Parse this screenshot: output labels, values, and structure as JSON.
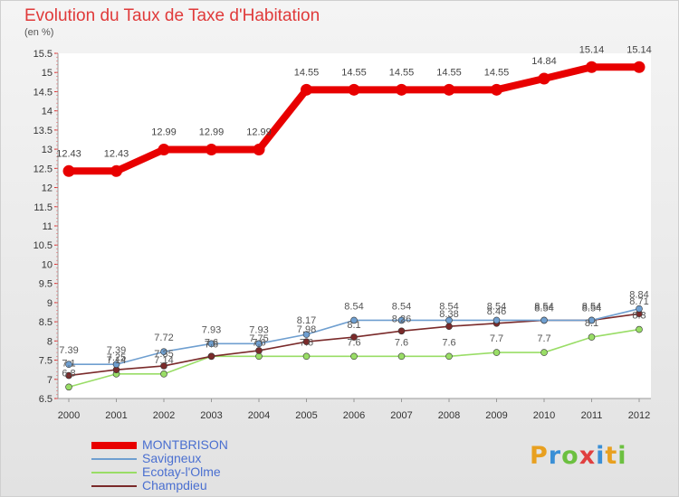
{
  "header": {
    "title": "Evolution du Taux de Taxe d'Habitation",
    "unit": "(en %)"
  },
  "brand": {
    "letters": [
      "P",
      "r",
      "o",
      "x",
      "i",
      "t",
      "i"
    ],
    "colors": [
      "#e8a020",
      "#3a8fd6",
      "#6cc040",
      "#e04040",
      "#3a8fd6",
      "#e8a020",
      "#6cc040"
    ]
  },
  "chart_data": {
    "type": "line",
    "x": [
      "2000",
      "2001",
      "2002",
      "2003",
      "2004",
      "2005",
      "2006",
      "2007",
      "2008",
      "2009",
      "2010",
      "2011",
      "2012"
    ],
    "ylim": [
      6.5,
      15.5
    ],
    "yticks": [
      6.5,
      7,
      7.5,
      8,
      8.5,
      9,
      9.5,
      10,
      10.5,
      11,
      11.5,
      12,
      12.5,
      13,
      13.5,
      14,
      14.5,
      15,
      15.5
    ],
    "yticks_labels": [
      "6.5",
      "7",
      "7.5",
      "8",
      "8.5",
      "9",
      "9.5",
      "10",
      "10.5",
      "11",
      "11.5",
      "12",
      "12.5",
      "13",
      "13.5",
      "14",
      "14.5",
      "15",
      "15.5"
    ],
    "legend_position": "bottom-left",
    "series": [
      {
        "name": "MONTBRISON",
        "color": "#e80000",
        "values": [
          12.43,
          12.43,
          12.99,
          12.99,
          12.99,
          14.55,
          14.55,
          14.55,
          14.55,
          14.55,
          14.84,
          15.14,
          15.14
        ],
        "labels": [
          "12.43",
          "12.43",
          "12.99",
          "12.99",
          "12.99",
          "14.55",
          "14.55",
          "14.55",
          "14.55",
          "14.55",
          "14.84",
          "15.14",
          "15.14"
        ]
      },
      {
        "name": "Savigneux",
        "color": "#6f9fd0",
        "values": [
          7.39,
          7.39,
          7.72,
          7.93,
          7.93,
          8.17,
          8.54,
          8.54,
          8.54,
          8.54,
          8.54,
          8.54,
          8.84
        ],
        "labels": [
          "7.39",
          "7.39",
          "7.72",
          "7.93",
          "7.93",
          "8.17",
          "8.54",
          "8.54",
          "8.54",
          "8.54",
          "8.54",
          "8.54",
          "8.84"
        ]
      },
      {
        "name": "Ecotay-l'Olme",
        "color": "#99dd66",
        "values": [
          6.8,
          7.14,
          7.14,
          7.6,
          7.6,
          7.6,
          7.6,
          7.6,
          7.6,
          7.7,
          7.7,
          8.1,
          8.3
        ],
        "labels": [
          "6.8",
          "7.14",
          "7.14",
          "7.6",
          "7.6",
          "7.6",
          "7.6",
          "7.6",
          "7.6",
          "7.7",
          "7.7",
          "8.1",
          "8.3"
        ]
      },
      {
        "name": "Champdieu",
        "color": "#7a2a2a",
        "values": [
          7.1,
          7.25,
          7.35,
          7.6,
          7.75,
          7.98,
          8.1,
          8.26,
          8.38,
          8.46,
          8.54,
          8.54,
          8.71
        ],
        "labels": [
          "7.1",
          "7.25",
          "7.35",
          "7.6",
          "7.75",
          "7.98",
          "8.1",
          "8.26",
          "8.38",
          "8.46",
          "8.54",
          "8.54",
          "8.71"
        ]
      }
    ]
  }
}
